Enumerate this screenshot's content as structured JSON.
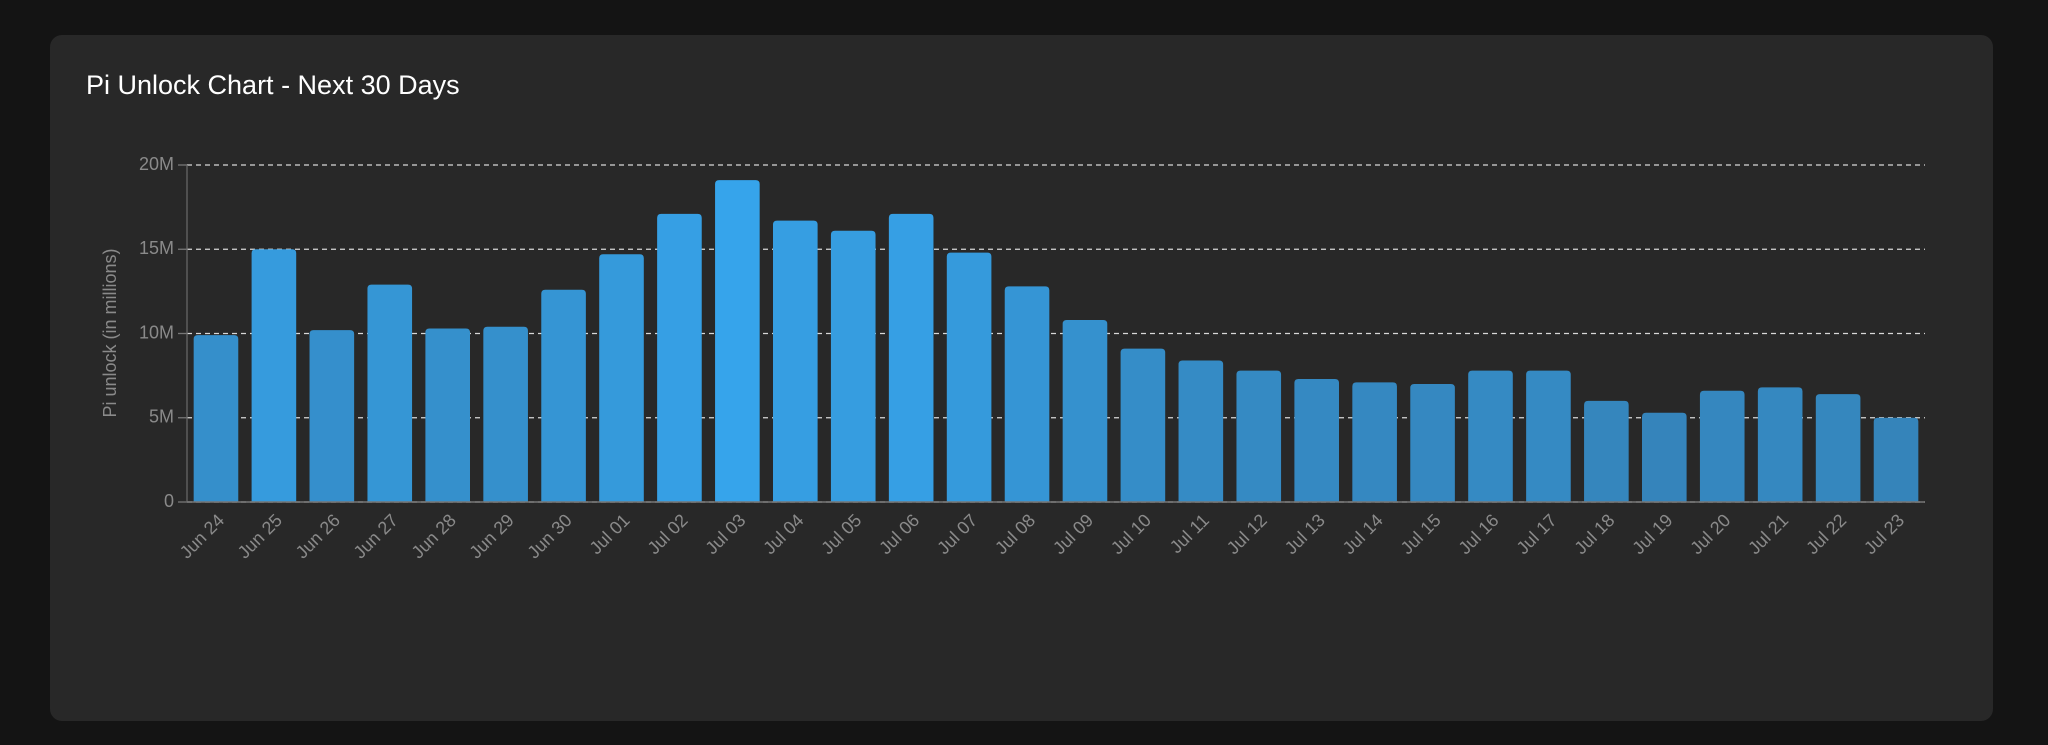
{
  "chart_data": {
    "type": "bar",
    "title": "Pi Unlock Chart - Next 30 Days",
    "y_label": "Pi unlock (in millions)",
    "categories": [
      "Jun 24",
      "Jun 25",
      "Jun 26",
      "Jun 27",
      "Jun 28",
      "Jun 29",
      "Jun 30",
      "Jul 01",
      "Jul 02",
      "Jul 03",
      "Jul 04",
      "Jul 05",
      "Jul 06",
      "Jul 07",
      "Jul 08",
      "Jul 09",
      "Jul 10",
      "Jul 11",
      "Jul 12",
      "Jul 13",
      "Jul 14",
      "Jul 15",
      "Jul 16",
      "Jul 17",
      "Jul 18",
      "Jul 19",
      "Jul 20",
      "Jul 21",
      "Jul 22",
      "Jul 23"
    ],
    "values": [
      9.9,
      15.0,
      10.2,
      12.9,
      10.3,
      10.4,
      12.6,
      14.7,
      17.1,
      19.1,
      16.7,
      16.1,
      17.1,
      14.8,
      12.8,
      10.8,
      9.1,
      8.4,
      7.8,
      7.3,
      7.1,
      7.0,
      7.8,
      7.8,
      6.0,
      5.3,
      6.6,
      6.8,
      6.4,
      5.0
    ],
    "color_range": [
      "#3478a8",
      "#36a6ee"
    ],
    "ylim": [
      0,
      20
    ],
    "yticks": [
      0,
      {
        "value": 5,
        "label": "5M"
      },
      {
        "value": 10,
        "label": "10M"
      },
      {
        "value": 15,
        "label": "15M"
      },
      {
        "value": 20,
        "label": "20M"
      }
    ],
    "grid": true
  }
}
